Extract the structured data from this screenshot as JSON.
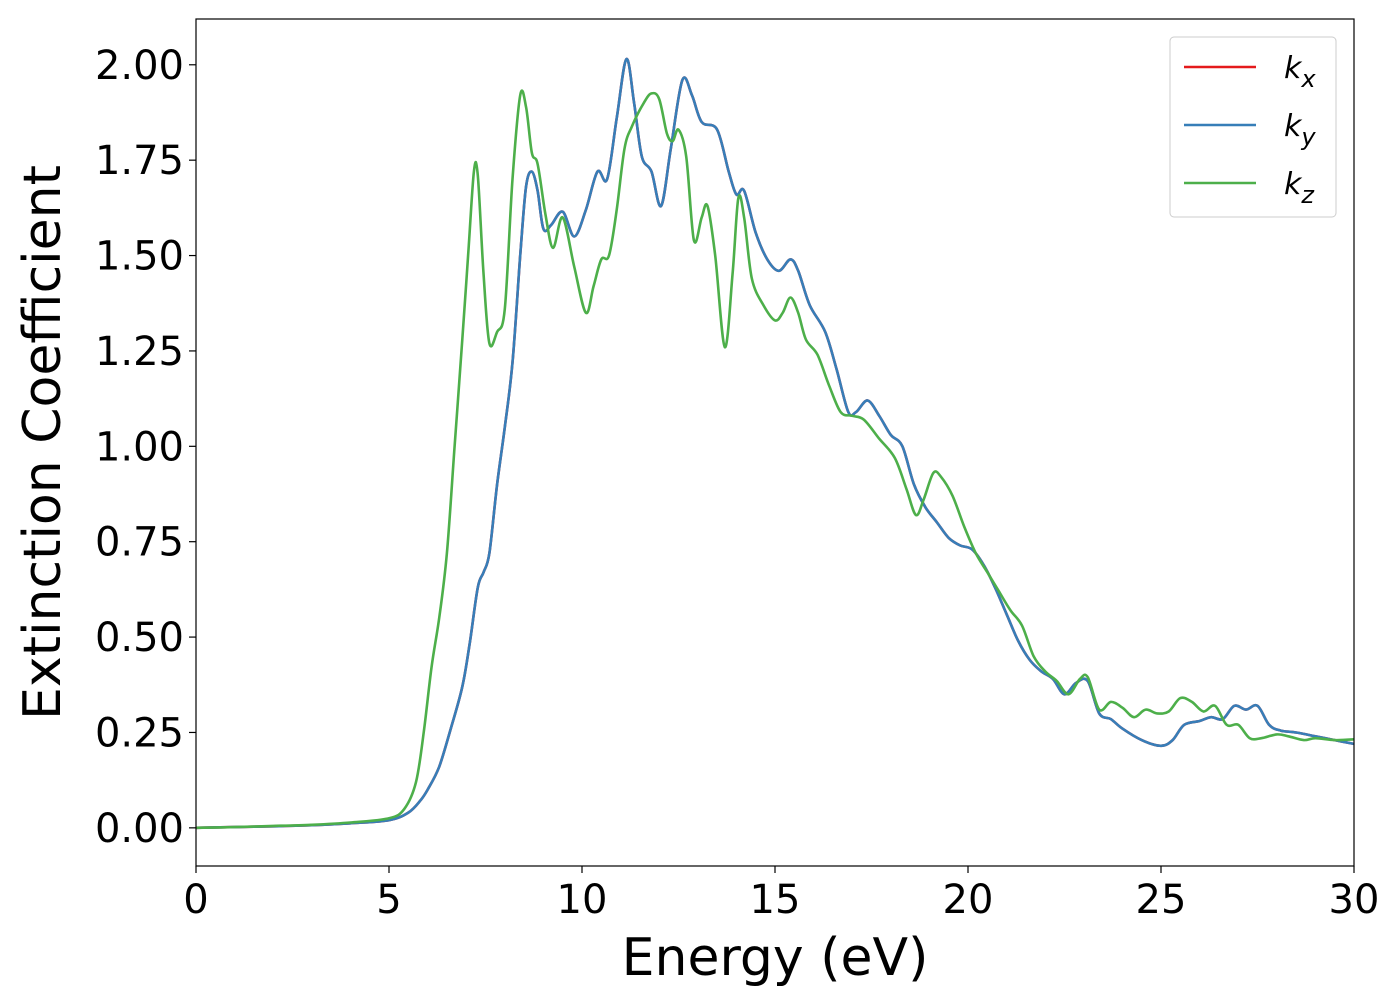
{
  "chart_data": {
    "type": "line",
    "title": "",
    "xlabel": "Energy (eV)",
    "ylabel": "Extinction Coefficient",
    "xlim": [
      0,
      30
    ],
    "ylim": [
      -0.1,
      2.12
    ],
    "x_ticks": [
      "0",
      "5",
      "10",
      "15",
      "20",
      "25",
      "30"
    ],
    "x_tick_values": [
      0,
      5,
      10,
      15,
      20,
      25,
      30
    ],
    "y_ticks": [
      "0.00",
      "0.25",
      "0.50",
      "0.75",
      "1.00",
      "1.25",
      "1.50",
      "1.75",
      "2.00"
    ],
    "y_tick_values": [
      0,
      0.25,
      0.5,
      0.75,
      1.0,
      1.25,
      1.5,
      1.75,
      2.0
    ],
    "grid": false,
    "legend_position": "top-right",
    "series": [
      {
        "name": "k_x",
        "label_base": "k",
        "label_sub": "x",
        "color": "#e41a1c",
        "points": [
          [
            0,
            0
          ],
          [
            1,
            0.002
          ],
          [
            2,
            0.004
          ],
          [
            3,
            0.007
          ],
          [
            4,
            0.012
          ],
          [
            5,
            0.02
          ],
          [
            5.5,
            0.04
          ],
          [
            5.8,
            0.07
          ],
          [
            6.0,
            0.1
          ],
          [
            6.3,
            0.16
          ],
          [
            6.6,
            0.26
          ],
          [
            6.9,
            0.37
          ],
          [
            7.1,
            0.49
          ],
          [
            7.3,
            0.63
          ],
          [
            7.45,
            0.67
          ],
          [
            7.6,
            0.72
          ],
          [
            7.8,
            0.9
          ],
          [
            8.0,
            1.05
          ],
          [
            8.2,
            1.22
          ],
          [
            8.4,
            1.5
          ],
          [
            8.55,
            1.68
          ],
          [
            8.7,
            1.72
          ],
          [
            8.85,
            1.67
          ],
          [
            9.0,
            1.57
          ],
          [
            9.2,
            1.58
          ],
          [
            9.5,
            1.615
          ],
          [
            9.8,
            1.55
          ],
          [
            10.1,
            1.62
          ],
          [
            10.4,
            1.72
          ],
          [
            10.65,
            1.7
          ],
          [
            10.9,
            1.86
          ],
          [
            11.15,
            2.015
          ],
          [
            11.35,
            1.9
          ],
          [
            11.55,
            1.76
          ],
          [
            11.8,
            1.72
          ],
          [
            12.05,
            1.63
          ],
          [
            12.3,
            1.78
          ],
          [
            12.6,
            1.96
          ],
          [
            12.85,
            1.92
          ],
          [
            13.1,
            1.85
          ],
          [
            13.5,
            1.83
          ],
          [
            13.8,
            1.72
          ],
          [
            14.0,
            1.66
          ],
          [
            14.2,
            1.67
          ],
          [
            14.5,
            1.56
          ],
          [
            14.8,
            1.49
          ],
          [
            15.1,
            1.46
          ],
          [
            15.4,
            1.49
          ],
          [
            15.6,
            1.46
          ],
          [
            15.9,
            1.37
          ],
          [
            16.3,
            1.3
          ],
          [
            16.6,
            1.2
          ],
          [
            16.9,
            1.09
          ],
          [
            17.1,
            1.09
          ],
          [
            17.4,
            1.12
          ],
          [
            17.7,
            1.08
          ],
          [
            18.0,
            1.03
          ],
          [
            18.3,
            1.0
          ],
          [
            18.6,
            0.9
          ],
          [
            18.9,
            0.84
          ],
          [
            19.2,
            0.8
          ],
          [
            19.5,
            0.76
          ],
          [
            19.8,
            0.74
          ],
          [
            20.1,
            0.73
          ],
          [
            20.4,
            0.69
          ],
          [
            20.7,
            0.63
          ],
          [
            21.0,
            0.56
          ],
          [
            21.3,
            0.49
          ],
          [
            21.6,
            0.44
          ],
          [
            21.9,
            0.41
          ],
          [
            22.2,
            0.39
          ],
          [
            22.5,
            0.35
          ],
          [
            22.8,
            0.38
          ],
          [
            23.1,
            0.385
          ],
          [
            23.4,
            0.3
          ],
          [
            23.7,
            0.285
          ],
          [
            24.0,
            0.26
          ],
          [
            24.5,
            0.23
          ],
          [
            25.0,
            0.215
          ],
          [
            25.3,
            0.23
          ],
          [
            25.6,
            0.27
          ],
          [
            26.0,
            0.28
          ],
          [
            26.3,
            0.29
          ],
          [
            26.6,
            0.285
          ],
          [
            26.9,
            0.32
          ],
          [
            27.2,
            0.31
          ],
          [
            27.5,
            0.32
          ],
          [
            27.8,
            0.27
          ],
          [
            28.1,
            0.255
          ],
          [
            28.5,
            0.25
          ],
          [
            29.0,
            0.24
          ],
          [
            29.5,
            0.23
          ],
          [
            30,
            0.22
          ]
        ]
      },
      {
        "name": "k_y",
        "label_base": "k",
        "label_sub": "y",
        "color": "#377eb8",
        "points": [
          [
            0,
            0
          ],
          [
            1,
            0.002
          ],
          [
            2,
            0.004
          ],
          [
            3,
            0.007
          ],
          [
            4,
            0.012
          ],
          [
            5,
            0.02
          ],
          [
            5.5,
            0.04
          ],
          [
            5.8,
            0.07
          ],
          [
            6.0,
            0.1
          ],
          [
            6.3,
            0.16
          ],
          [
            6.6,
            0.26
          ],
          [
            6.9,
            0.37
          ],
          [
            7.1,
            0.49
          ],
          [
            7.3,
            0.63
          ],
          [
            7.45,
            0.67
          ],
          [
            7.6,
            0.72
          ],
          [
            7.8,
            0.9
          ],
          [
            8.0,
            1.05
          ],
          [
            8.2,
            1.22
          ],
          [
            8.4,
            1.5
          ],
          [
            8.55,
            1.68
          ],
          [
            8.7,
            1.72
          ],
          [
            8.85,
            1.67
          ],
          [
            9.0,
            1.57
          ],
          [
            9.2,
            1.58
          ],
          [
            9.5,
            1.615
          ],
          [
            9.8,
            1.55
          ],
          [
            10.1,
            1.62
          ],
          [
            10.4,
            1.72
          ],
          [
            10.65,
            1.7
          ],
          [
            10.9,
            1.86
          ],
          [
            11.15,
            2.015
          ],
          [
            11.35,
            1.9
          ],
          [
            11.55,
            1.76
          ],
          [
            11.8,
            1.72
          ],
          [
            12.05,
            1.63
          ],
          [
            12.3,
            1.78
          ],
          [
            12.6,
            1.96
          ],
          [
            12.85,
            1.92
          ],
          [
            13.1,
            1.85
          ],
          [
            13.5,
            1.83
          ],
          [
            13.8,
            1.72
          ],
          [
            14.0,
            1.66
          ],
          [
            14.2,
            1.67
          ],
          [
            14.5,
            1.56
          ],
          [
            14.8,
            1.49
          ],
          [
            15.1,
            1.46
          ],
          [
            15.4,
            1.49
          ],
          [
            15.6,
            1.46
          ],
          [
            15.9,
            1.37
          ],
          [
            16.3,
            1.3
          ],
          [
            16.6,
            1.2
          ],
          [
            16.9,
            1.09
          ],
          [
            17.1,
            1.09
          ],
          [
            17.4,
            1.12
          ],
          [
            17.7,
            1.08
          ],
          [
            18.0,
            1.03
          ],
          [
            18.3,
            1.0
          ],
          [
            18.6,
            0.9
          ],
          [
            18.9,
            0.84
          ],
          [
            19.2,
            0.8
          ],
          [
            19.5,
            0.76
          ],
          [
            19.8,
            0.74
          ],
          [
            20.1,
            0.73
          ],
          [
            20.4,
            0.69
          ],
          [
            20.7,
            0.63
          ],
          [
            21.0,
            0.56
          ],
          [
            21.3,
            0.49
          ],
          [
            21.6,
            0.44
          ],
          [
            21.9,
            0.41
          ],
          [
            22.2,
            0.39
          ],
          [
            22.5,
            0.35
          ],
          [
            22.8,
            0.38
          ],
          [
            23.1,
            0.385
          ],
          [
            23.4,
            0.3
          ],
          [
            23.7,
            0.285
          ],
          [
            24.0,
            0.26
          ],
          [
            24.5,
            0.23
          ],
          [
            25.0,
            0.215
          ],
          [
            25.3,
            0.23
          ],
          [
            25.6,
            0.27
          ],
          [
            26.0,
            0.28
          ],
          [
            26.3,
            0.29
          ],
          [
            26.6,
            0.285
          ],
          [
            26.9,
            0.32
          ],
          [
            27.2,
            0.31
          ],
          [
            27.5,
            0.32
          ],
          [
            27.8,
            0.27
          ],
          [
            28.1,
            0.255
          ],
          [
            28.5,
            0.25
          ],
          [
            29.0,
            0.24
          ],
          [
            29.5,
            0.23
          ],
          [
            30,
            0.22
          ]
        ]
      },
      {
        "name": "k_z",
        "label_base": "k",
        "label_sub": "z",
        "color": "#4daf4a",
        "points": [
          [
            0,
            0
          ],
          [
            1,
            0.002
          ],
          [
            2,
            0.005
          ],
          [
            3,
            0.008
          ],
          [
            4,
            0.014
          ],
          [
            5,
            0.025
          ],
          [
            5.4,
            0.05
          ],
          [
            5.7,
            0.12
          ],
          [
            5.9,
            0.25
          ],
          [
            6.1,
            0.42
          ],
          [
            6.3,
            0.55
          ],
          [
            6.5,
            0.72
          ],
          [
            6.7,
            1.0
          ],
          [
            6.9,
            1.28
          ],
          [
            7.05,
            1.5
          ],
          [
            7.2,
            1.72
          ],
          [
            7.3,
            1.71
          ],
          [
            7.45,
            1.45
          ],
          [
            7.6,
            1.27
          ],
          [
            7.8,
            1.3
          ],
          [
            8.0,
            1.36
          ],
          [
            8.2,
            1.7
          ],
          [
            8.4,
            1.92
          ],
          [
            8.55,
            1.89
          ],
          [
            8.7,
            1.77
          ],
          [
            8.85,
            1.74
          ],
          [
            9.05,
            1.61
          ],
          [
            9.25,
            1.52
          ],
          [
            9.5,
            1.6
          ],
          [
            9.8,
            1.47
          ],
          [
            10.1,
            1.35
          ],
          [
            10.3,
            1.42
          ],
          [
            10.5,
            1.49
          ],
          [
            10.7,
            1.5
          ],
          [
            10.9,
            1.62
          ],
          [
            11.1,
            1.78
          ],
          [
            11.3,
            1.84
          ],
          [
            11.6,
            1.9
          ],
          [
            11.8,
            1.925
          ],
          [
            12.0,
            1.91
          ],
          [
            12.2,
            1.82
          ],
          [
            12.35,
            1.8
          ],
          [
            12.5,
            1.83
          ],
          [
            12.7,
            1.76
          ],
          [
            12.9,
            1.54
          ],
          [
            13.1,
            1.6
          ],
          [
            13.25,
            1.63
          ],
          [
            13.45,
            1.5
          ],
          [
            13.7,
            1.26
          ],
          [
            13.9,
            1.45
          ],
          [
            14.05,
            1.65
          ],
          [
            14.2,
            1.6
          ],
          [
            14.4,
            1.44
          ],
          [
            14.7,
            1.37
          ],
          [
            15.0,
            1.33
          ],
          [
            15.2,
            1.35
          ],
          [
            15.4,
            1.39
          ],
          [
            15.6,
            1.35
          ],
          [
            15.8,
            1.28
          ],
          [
            16.1,
            1.24
          ],
          [
            16.4,
            1.16
          ],
          [
            16.7,
            1.09
          ],
          [
            17.0,
            1.08
          ],
          [
            17.3,
            1.07
          ],
          [
            17.7,
            1.02
          ],
          [
            18.1,
            0.97
          ],
          [
            18.4,
            0.89
          ],
          [
            18.65,
            0.82
          ],
          [
            18.85,
            0.86
          ],
          [
            19.1,
            0.93
          ],
          [
            19.3,
            0.92
          ],
          [
            19.6,
            0.87
          ],
          [
            19.9,
            0.79
          ],
          [
            20.2,
            0.72
          ],
          [
            20.5,
            0.67
          ],
          [
            20.8,
            0.62
          ],
          [
            21.1,
            0.57
          ],
          [
            21.4,
            0.53
          ],
          [
            21.7,
            0.45
          ],
          [
            22.0,
            0.41
          ],
          [
            22.3,
            0.385
          ],
          [
            22.6,
            0.35
          ],
          [
            22.9,
            0.39
          ],
          [
            23.1,
            0.395
          ],
          [
            23.4,
            0.31
          ],
          [
            23.7,
            0.33
          ],
          [
            24.0,
            0.315
          ],
          [
            24.3,
            0.29
          ],
          [
            24.6,
            0.31
          ],
          [
            24.9,
            0.3
          ],
          [
            25.2,
            0.305
          ],
          [
            25.5,
            0.34
          ],
          [
            25.8,
            0.33
          ],
          [
            26.1,
            0.305
          ],
          [
            26.4,
            0.32
          ],
          [
            26.7,
            0.27
          ],
          [
            27.0,
            0.27
          ],
          [
            27.3,
            0.235
          ],
          [
            27.6,
            0.235
          ],
          [
            28.0,
            0.245
          ],
          [
            28.3,
            0.24
          ],
          [
            28.7,
            0.23
          ],
          [
            29.0,
            0.235
          ],
          [
            29.5,
            0.23
          ],
          [
            30,
            0.232
          ]
        ]
      }
    ]
  }
}
